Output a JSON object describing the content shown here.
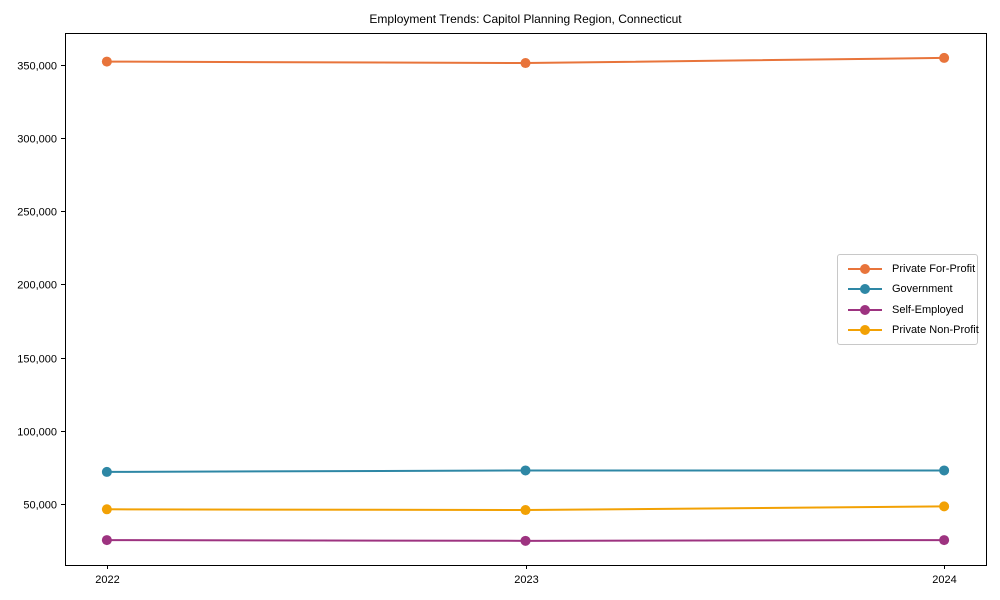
{
  "chart_data": {
    "type": "line",
    "title": "Employment Trends: Capitol Planning Region, Connecticut",
    "x": [
      2022,
      2023,
      2024
    ],
    "xtick_labels": [
      "2022",
      "2023",
      "2024"
    ],
    "series": [
      {
        "name": "Private For-Profit",
        "color": "#e8743b",
        "values": [
          352000,
          351000,
          354500
        ]
      },
      {
        "name": "Government",
        "color": "#2e87a5",
        "values": [
          72000,
          73000,
          73000
        ]
      },
      {
        "name": "Self-Employed",
        "color": "#9d3380",
        "values": [
          25500,
          25000,
          25500
        ]
      },
      {
        "name": "Private Non-Profit",
        "color": "#f2a104",
        "values": [
          46500,
          46000,
          48500
        ]
      }
    ],
    "yticks": [
      50000,
      100000,
      150000,
      200000,
      250000,
      300000,
      350000
    ],
    "ytick_labels": [
      "50,000",
      "100,000",
      "150,000",
      "200,000",
      "250,000",
      "300,000",
      "350,000"
    ],
    "xlim": [
      2021.9,
      2024.1
    ],
    "ylim": [
      8500,
      371500
    ],
    "grid": false,
    "legend_position": "center-right",
    "axis_color": "#000000",
    "background": "#ffffff",
    "xlabel": "",
    "ylabel": ""
  }
}
